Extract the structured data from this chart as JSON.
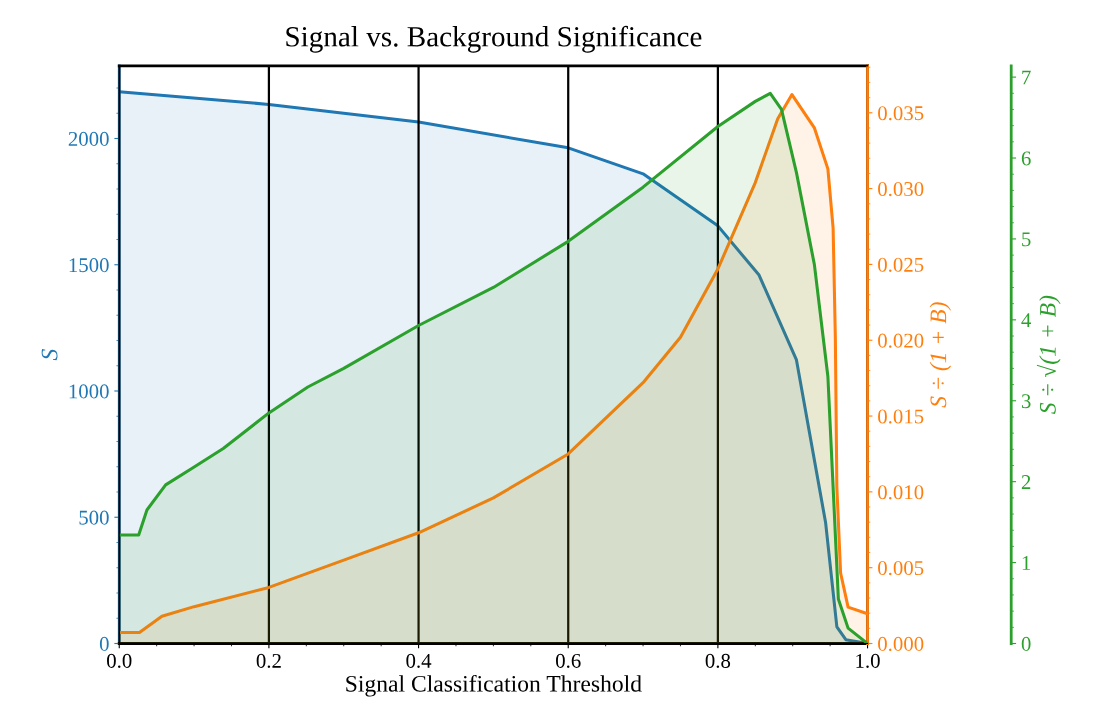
{
  "chart_data": {
    "type": "area",
    "title": "Signal vs. Background Significance",
    "xlabel": "Signal Classification Threshold",
    "ylabel": "S",
    "y2label": "S ÷ (1 + B)",
    "y3label": "S ÷ √(1 + B)",
    "xlim": [
      0,
      1
    ],
    "xticks": [
      {
        "value": 0,
        "label": "0.0"
      },
      0.2,
      0.4,
      0.6,
      0.8,
      {
        "value": 1,
        "label": "1.0"
      }
    ],
    "ylim": [
      0,
      2288
    ],
    "yticks": [
      0,
      500,
      1000,
      1500,
      2000
    ],
    "y2lim": [
      0,
      0.0381
    ],
    "y2ticks": [
      {
        "value": 0,
        "label": "0.000"
      },
      0.005,
      {
        "value": 0.01,
        "label": "0.010"
      },
      0.015,
      {
        "value": 0.02,
        "label": "0.020"
      },
      0.025,
      {
        "value": 0.03,
        "label": "0.030"
      },
      0.035
    ],
    "y3lim": [
      0,
      7.14
    ],
    "y3ticks": [
      0,
      1,
      2,
      3,
      4,
      5,
      6,
      7
    ],
    "grid": "x",
    "series": [
      {
        "color": "#1f77b4",
        "axis": "y",
        "x": [
          0,
          0.2,
          0.4,
          0.6,
          0.7,
          0.8,
          0.855,
          0.905,
          0.944,
          0.959,
          0.971,
          1.0
        ],
        "values": [
          2185,
          2135,
          2065,
          1963,
          1860,
          1654,
          1459,
          1123,
          478,
          66,
          15,
          0
        ]
      },
      {
        "color": "#ff7f0e",
        "axis": "y2",
        "x": [
          0,
          0.027,
          0.057,
          0.1,
          0.2,
          0.3,
          0.4,
          0.5,
          0.6,
          0.7,
          0.75,
          0.8,
          0.85,
          0.88,
          0.899,
          0.929,
          0.947,
          0.954,
          0.957,
          0.959,
          0.964,
          0.974,
          0.999
        ],
        "values": [
          0.00073,
          0.00073,
          0.0018,
          0.00243,
          0.0037,
          0.0055,
          0.0073,
          0.0096,
          0.0125,
          0.0172,
          0.0202,
          0.0247,
          0.0304,
          0.0346,
          0.0362,
          0.034,
          0.0313,
          0.0274,
          0.0201,
          0.0103,
          0.00465,
          0.0024,
          0.00198
        ]
      },
      {
        "color": "#2ca02c",
        "axis": "y3",
        "x": [
          0,
          0.026,
          0.037,
          0.062,
          0.098,
          0.139,
          0.2,
          0.252,
          0.3,
          0.4,
          0.5,
          0.6,
          0.7,
          0.8,
          0.85,
          0.87,
          0.885,
          0.905,
          0.929,
          0.947,
          0.954,
          0.961,
          0.974,
          1.0
        ],
        "values": [
          1.34,
          1.34,
          1.65,
          1.96,
          2.17,
          2.41,
          2.85,
          3.17,
          3.4,
          3.93,
          4.4,
          4.97,
          5.64,
          6.39,
          6.7,
          6.8,
          6.6,
          5.82,
          4.68,
          3.3,
          1.93,
          0.55,
          0.19,
          0
        ]
      }
    ]
  }
}
